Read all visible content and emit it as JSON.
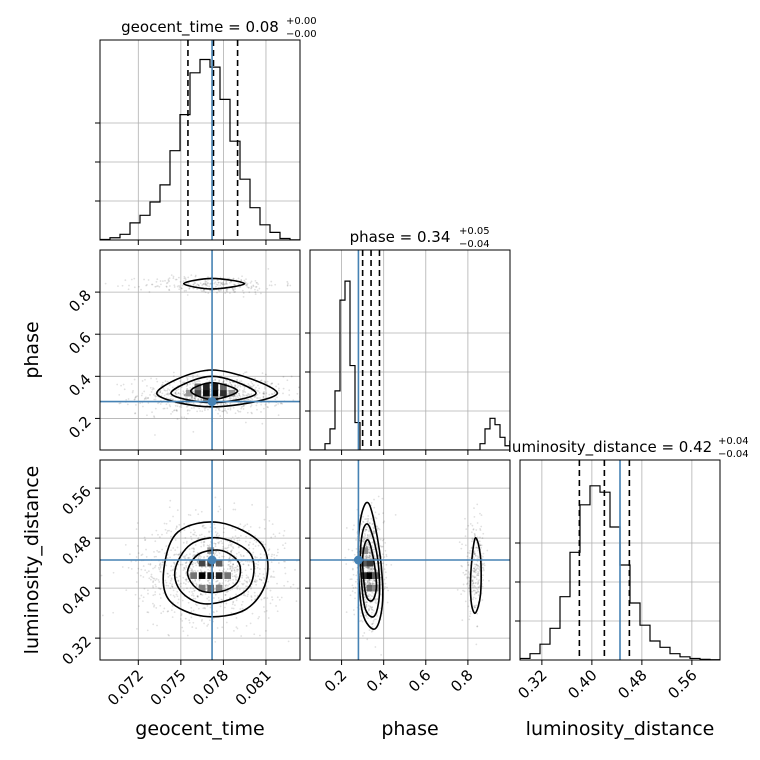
{
  "chart_data": {
    "type": "corner",
    "parameters": [
      {
        "name": "geocent_time",
        "label": "geocent_time",
        "range": [
          0.0693,
          0.0834
        ],
        "ticks": [
          0.072,
          0.075,
          0.078,
          0.081
        ],
        "tick_labels": [
          "0.072",
          "0.075",
          "0.078",
          "0.081"
        ],
        "truth": 0.0772,
        "quantiles": [
          0.0755,
          0.0773,
          0.079
        ],
        "title_main": "geocent_time = 0.08",
        "title_sup": "+0.00",
        "title_sub": "−0.00",
        "hist": [
          0.3,
          1.2,
          3,
          9,
          13,
          20,
          29,
          47,
          66,
          88,
          95,
          91,
          74,
          52,
          32,
          17,
          8,
          4,
          0.8,
          0.1
        ],
        "hist_max": 100
      },
      {
        "name": "phase",
        "label": "phase",
        "range": [
          0.05,
          1.0
        ],
        "ticks": [
          0.2,
          0.4,
          0.6,
          0.8
        ],
        "tick_labels": [
          "0.2",
          "0.4",
          "0.6",
          "0.8"
        ],
        "truth": 0.28,
        "quantiles": [
          0.3,
          0.34,
          0.38
        ],
        "title_main": "phase = 0.34",
        "title_sup": "+0.05",
        "title_sub": "−0.04",
        "hist": [
          0,
          0,
          0,
          3,
          10,
          28,
          71,
          80,
          40,
          13,
          0,
          0,
          0,
          0,
          0,
          0,
          0,
          0,
          0,
          0,
          0,
          0,
          0,
          0,
          0,
          0,
          0,
          0,
          0,
          0,
          0,
          0,
          0,
          0,
          3,
          10,
          15,
          12,
          6,
          2
        ],
        "hist_max": 90
      },
      {
        "name": "luminosity_distance",
        "label": "luminosity_distance",
        "range": [
          0.285,
          0.605
        ],
        "ticks": [
          0.32,
          0.4,
          0.48,
          0.56
        ],
        "tick_labels": [
          "0.32",
          "0.40",
          "0.48",
          "0.56"
        ],
        "truth": 0.445,
        "quantiles": [
          0.38,
          0.42,
          0.46
        ],
        "title_main": "luminosity_distance = 0.42",
        "title_sup": "+0.04",
        "title_sub": "−0.04",
        "hist": [
          0.5,
          2,
          5,
          10,
          20,
          34,
          49,
          55,
          53,
          42,
          30,
          18,
          11,
          6,
          4,
          2,
          1,
          0.5,
          0.2,
          0.1
        ],
        "hist_max": 60
      }
    ],
    "pairs": [
      {
        "x": "geocent_time",
        "y": "phase",
        "points_clusters": [
          {
            "cx": 0.0772,
            "cy": 0.31,
            "sx": 0.0026,
            "sy": 0.045,
            "n": 800
          },
          {
            "cx": 0.0772,
            "cy": 0.835,
            "sx": 0.0024,
            "sy": 0.022,
            "n": 280
          }
        ],
        "contours": [
          [
            [
              0.0752,
              0.84
            ],
            [
              0.0772,
              0.865
            ],
            [
              0.0795,
              0.84
            ],
            [
              0.0772,
              0.815
            ]
          ],
          [
            [
              0.0733,
              0.32
            ],
            [
              0.0772,
              0.43
            ],
            [
              0.0818,
              0.32
            ],
            [
              0.0772,
              0.255
            ]
          ],
          [
            [
              0.0743,
              0.32
            ],
            [
              0.0772,
              0.4
            ],
            [
              0.0803,
              0.32
            ],
            [
              0.0772,
              0.275
            ]
          ],
          [
            [
              0.0757,
              0.33
            ],
            [
              0.0772,
              0.37
            ],
            [
              0.079,
              0.33
            ],
            [
              0.0772,
              0.29
            ]
          ]
        ],
        "density_cells": [
          {
            "x": 0.0762,
            "y": 0.32,
            "v": 0.7
          },
          {
            "x": 0.0768,
            "y": 0.32,
            "v": 0.95
          },
          {
            "x": 0.0774,
            "y": 0.32,
            "v": 1.0
          },
          {
            "x": 0.078,
            "y": 0.32,
            "v": 0.8
          },
          {
            "x": 0.0762,
            "y": 0.35,
            "v": 0.5
          },
          {
            "x": 0.0768,
            "y": 0.35,
            "v": 0.85
          },
          {
            "x": 0.0774,
            "y": 0.35,
            "v": 0.9
          },
          {
            "x": 0.078,
            "y": 0.35,
            "v": 0.55
          },
          {
            "x": 0.0756,
            "y": 0.32,
            "v": 0.35
          },
          {
            "x": 0.0786,
            "y": 0.32,
            "v": 0.35
          },
          {
            "x": 0.0768,
            "y": 0.29,
            "v": 0.45
          },
          {
            "x": 0.0774,
            "y": 0.29,
            "v": 0.45
          }
        ]
      },
      {
        "x": "geocent_time",
        "y": "luminosity_distance",
        "points_clusters": [
          {
            "cx": 0.0772,
            "cy": 0.43,
            "sx": 0.0026,
            "sy": 0.04,
            "n": 1100
          }
        ],
        "contours": [
          [
            [
              0.0738,
              0.43
            ],
            [
              0.0748,
              0.49
            ],
            [
              0.0777,
              0.505
            ],
            [
              0.0807,
              0.47
            ],
            [
              0.081,
              0.41
            ],
            [
              0.0795,
              0.365
            ],
            [
              0.0766,
              0.355
            ],
            [
              0.0742,
              0.38
            ]
          ],
          [
            [
              0.0746,
              0.43
            ],
            [
              0.0757,
              0.47
            ],
            [
              0.0778,
              0.48
            ],
            [
              0.0799,
              0.455
            ],
            [
              0.08,
              0.41
            ],
            [
              0.0788,
              0.385
            ],
            [
              0.0766,
              0.375
            ],
            [
              0.075,
              0.395
            ]
          ],
          [
            [
              0.0755,
              0.43
            ],
            [
              0.0763,
              0.455
            ],
            [
              0.0779,
              0.46
            ],
            [
              0.0791,
              0.44
            ],
            [
              0.079,
              0.41
            ],
            [
              0.0779,
              0.395
            ],
            [
              0.0765,
              0.395
            ],
            [
              0.0757,
              0.41
            ]
          ]
        ],
        "density_cells": [
          {
            "x": 0.0765,
            "y": 0.42,
            "v": 1.0
          },
          {
            "x": 0.0771,
            "y": 0.42,
            "v": 0.9
          },
          {
            "x": 0.0777,
            "y": 0.42,
            "v": 0.85
          },
          {
            "x": 0.0765,
            "y": 0.44,
            "v": 0.7
          },
          {
            "x": 0.0771,
            "y": 0.44,
            "v": 0.75
          },
          {
            "x": 0.0777,
            "y": 0.44,
            "v": 0.6
          },
          {
            "x": 0.0783,
            "y": 0.42,
            "v": 0.5
          },
          {
            "x": 0.0759,
            "y": 0.42,
            "v": 0.5
          },
          {
            "x": 0.0771,
            "y": 0.4,
            "v": 0.55
          },
          {
            "x": 0.0765,
            "y": 0.4,
            "v": 0.45
          },
          {
            "x": 0.0777,
            "y": 0.4,
            "v": 0.45
          },
          {
            "x": 0.0771,
            "y": 0.46,
            "v": 0.35
          }
        ]
      },
      {
        "x": "phase",
        "y": "luminosity_distance",
        "points_clusters": [
          {
            "cx": 0.33,
            "cy": 0.43,
            "sx": 0.035,
            "sy": 0.04,
            "n": 800
          },
          {
            "cx": 0.835,
            "cy": 0.43,
            "sx": 0.025,
            "sy": 0.035,
            "n": 260
          }
        ],
        "contours": [
          [
            [
              0.28,
              0.44
            ],
            [
              0.29,
              0.51
            ],
            [
              0.33,
              0.535
            ],
            [
              0.38,
              0.46
            ],
            [
              0.395,
              0.38
            ],
            [
              0.36,
              0.335
            ],
            [
              0.3,
              0.36
            ]
          ],
          [
            [
              0.29,
              0.44
            ],
            [
              0.3,
              0.49
            ],
            [
              0.33,
              0.5
            ],
            [
              0.37,
              0.45
            ],
            [
              0.38,
              0.39
            ],
            [
              0.355,
              0.355
            ],
            [
              0.31,
              0.37
            ]
          ],
          [
            [
              0.3,
              0.44
            ],
            [
              0.31,
              0.47
            ],
            [
              0.33,
              0.475
            ],
            [
              0.355,
              0.44
            ],
            [
              0.365,
              0.4
            ],
            [
              0.345,
              0.38
            ],
            [
              0.315,
              0.39
            ]
          ],
          [
            [
              0.815,
              0.43
            ],
            [
              0.835,
              0.48
            ],
            [
              0.86,
              0.45
            ],
            [
              0.86,
              0.39
            ],
            [
              0.835,
              0.36
            ],
            [
              0.815,
              0.38
            ]
          ]
        ],
        "density_cells": [
          {
            "x": 0.31,
            "y": 0.42,
            "v": 0.8
          },
          {
            "x": 0.335,
            "y": 0.42,
            "v": 1.0
          },
          {
            "x": 0.36,
            "y": 0.42,
            "v": 0.6
          },
          {
            "x": 0.31,
            "y": 0.44,
            "v": 0.6
          },
          {
            "x": 0.335,
            "y": 0.44,
            "v": 0.75
          },
          {
            "x": 0.335,
            "y": 0.4,
            "v": 0.55
          },
          {
            "x": 0.31,
            "y": 0.46,
            "v": 0.4
          },
          {
            "x": 0.36,
            "y": 0.4,
            "v": 0.4
          }
        ]
      }
    ],
    "truth_color": "#4682b4",
    "line_color": "#000000",
    "grid": true
  }
}
